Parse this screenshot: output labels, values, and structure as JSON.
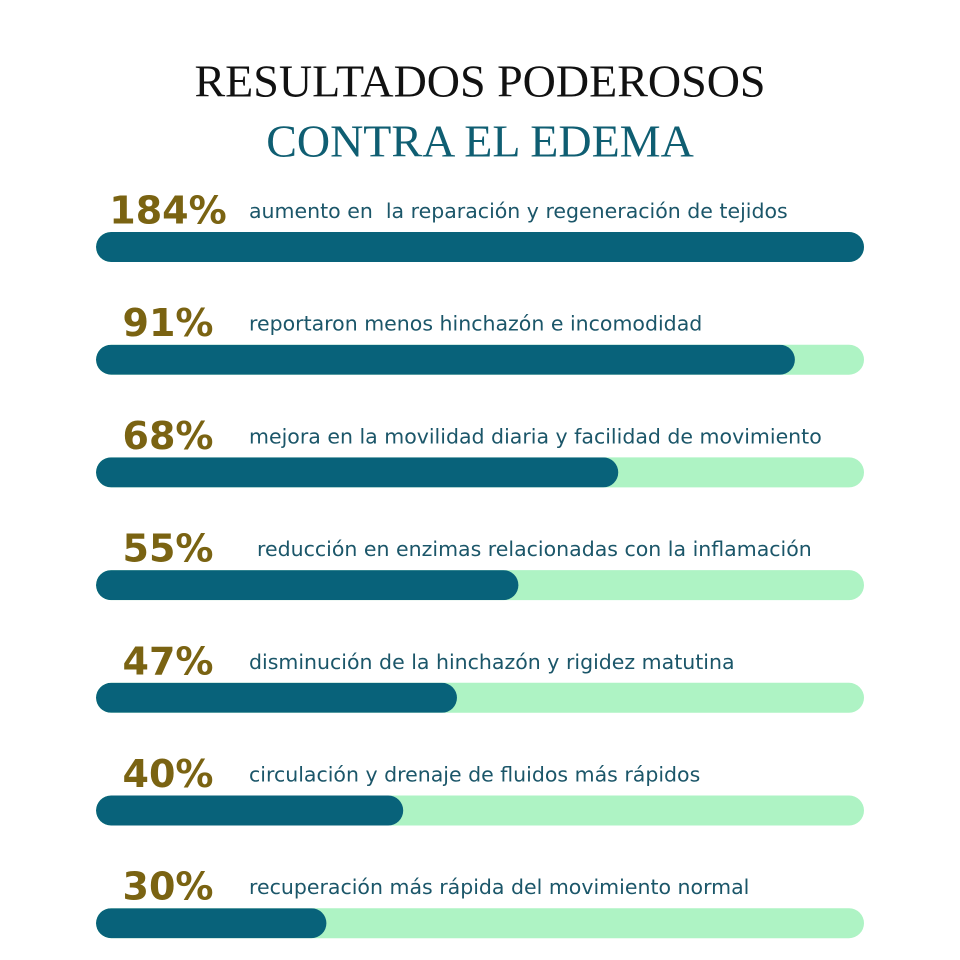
{
  "chart_data": {
    "type": "bar",
    "title": "RESULTADOS PODEROSOS",
    "subtitle": "CONTRA EL EDEMA",
    "categories": [
      "aumento en  la reparación y regeneración de tejidos",
      "reportaron menos hinchazón e incomodidad",
      "mejora en la movilidad diaria y facilidad de movimiento",
      "reducción en enzimas relacionadas con la inflamación",
      "disminución de la hinchazón y rigidez matutina",
      "circulación y drenaje de fluidos más rápidos",
      "recuperación más rápida del movimiento normal"
    ],
    "values": [
      184,
      91,
      68,
      55,
      47,
      40,
      30
    ],
    "value_labels": [
      "184%",
      "91%",
      "68%",
      "55%",
      "47%",
      "40%",
      "30%"
    ],
    "xlim": [
      0,
      100
    ],
    "color": "#08627a",
    "track_color": "#aef3c4",
    "label_color": "#7a6312"
  }
}
